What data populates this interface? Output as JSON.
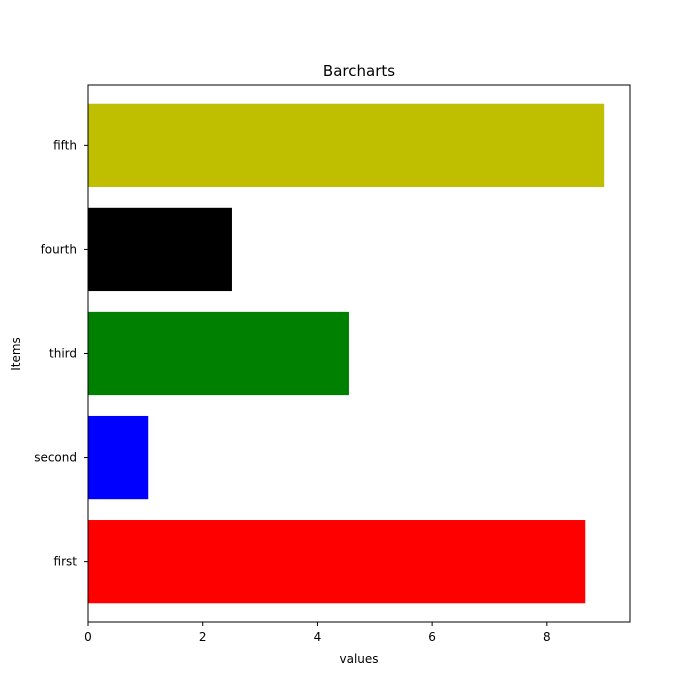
{
  "chart_data": {
    "type": "bar",
    "orientation": "horizontal",
    "title": "Barcharts",
    "xlabel": "values",
    "ylabel": "Items",
    "categories": [
      "first",
      "second",
      "third",
      "fourth",
      "fifth"
    ],
    "values": [
      8.67,
      1.05,
      4.55,
      2.51,
      9.0
    ],
    "colors": [
      "#ff0000",
      "#0000ff",
      "#008000",
      "#000000",
      "#bfbf00"
    ],
    "xlim": [
      0,
      9.45
    ],
    "xticks": [
      0,
      2,
      4,
      6,
      8
    ],
    "xtick_labels": [
      "0",
      "2",
      "4",
      "6",
      "8"
    ],
    "grid": false
  }
}
